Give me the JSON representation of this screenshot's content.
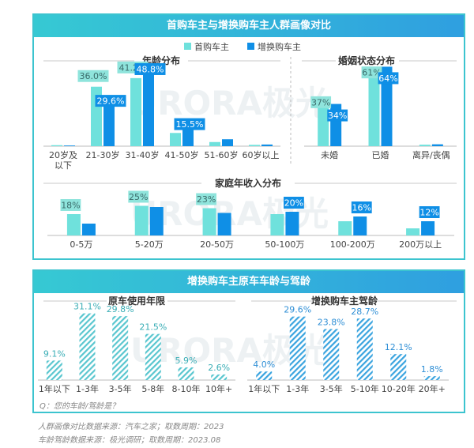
{
  "colors": {
    "first": "#6fe1dc",
    "replace": "#0f8fe6",
    "first_label_bg": "#8fe4dc",
    "replace_label_bg": "#0f8fe6",
    "teal_hatch": "#59c6cf",
    "blue_hatch": "#3aa4df",
    "title_gradient": [
      "#36c9d3",
      "#2f9fe0"
    ],
    "border": "#3cc4cf"
  },
  "watermark": "URORA极光",
  "top_panel": {
    "title": "首购车主与增换购车主人群画像对比",
    "legend": [
      "首购车主",
      "增换购车主"
    ]
  },
  "bottom_panel": {
    "title": "增换购车主原车车龄与驾龄",
    "question": "Q：您的车龄/驾龄是？"
  },
  "sources": [
    "人群画像对比数据来源：汽车之家；取数周期：2023",
    "车龄驾龄数据来源：极光调研；取数周期：2023.08"
  ],
  "chart_data": [
    {
      "type": "bar",
      "title": "年龄分布",
      "categories": [
        "20岁及以下",
        "21-30岁",
        "31-40岁",
        "41-50岁",
        "51-60岁",
        "60岁以上"
      ],
      "series": [
        {
          "name": "首购车主",
          "values": [
            0.6,
            36.0,
            41.2,
            8.0,
            2.5,
            0.8
          ],
          "labels": [
            "",
            "36.0%",
            "41.2%",
            "",
            "",
            ""
          ]
        },
        {
          "name": "增换购车主",
          "values": [
            0.4,
            29.6,
            48.8,
            15.5,
            4.2,
            1.0
          ],
          "labels": [
            "",
            "29.6%",
            "48.8%",
            "15.5%",
            "",
            ""
          ]
        }
      ],
      "ylim": [
        0,
        55
      ]
    },
    {
      "type": "bar",
      "title": "婚姻状态分布",
      "categories": [
        "未婚",
        "已婚",
        "离异/丧偶"
      ],
      "series": [
        {
          "name": "首购车主",
          "values": [
            37,
            61,
            1.2
          ],
          "labels": [
            "37%",
            "61%",
            ""
          ]
        },
        {
          "name": "增换购车主",
          "values": [
            34,
            64,
            1.5
          ],
          "labels": [
            "34%",
            "64%",
            ""
          ]
        }
      ],
      "ylim": [
        0,
        70
      ]
    },
    {
      "type": "bar",
      "title": "家庭年收入分布",
      "categories": [
        "0-5万",
        "5-20万",
        "20-50万",
        "50-100万",
        "100-200万",
        "200万以上"
      ],
      "series": [
        {
          "name": "首购车主",
          "values": [
            18,
            25,
            23,
            18,
            12,
            6
          ],
          "labels": [
            "18%",
            "25%",
            "23%",
            "",
            "",
            ""
          ]
        },
        {
          "name": "增换购车主",
          "values": [
            10,
            24,
            19,
            20,
            16,
            12
          ],
          "labels": [
            "",
            "",
            "",
            "20%",
            "16%",
            "12%"
          ]
        }
      ],
      "ylim": [
        0,
        30
      ]
    },
    {
      "type": "bar",
      "title": "原车使用年限",
      "categories": [
        "1年以下",
        "1-3年",
        "3-5年",
        "5-8年",
        "8-10年",
        "10年+"
      ],
      "values": [
        9.1,
        31.1,
        29.8,
        21.5,
        5.9,
        2.6
      ],
      "labels": [
        "9.1%",
        "31.1%",
        "29.8%",
        "21.5%",
        "5.9%",
        "2.6%"
      ],
      "ylim": [
        0,
        35
      ]
    },
    {
      "type": "bar",
      "title": "增换购车主驾龄",
      "categories": [
        "1年以下",
        "1-3年",
        "3-5年",
        "5-10年",
        "10-20年",
        "20年+"
      ],
      "values": [
        4.0,
        29.6,
        23.8,
        28.7,
        12.1,
        1.8
      ],
      "labels": [
        "4.0%",
        "29.6%",
        "23.8%",
        "28.7%",
        "12.1%",
        "1.8%"
      ],
      "ylim": [
        0,
        35
      ]
    }
  ]
}
